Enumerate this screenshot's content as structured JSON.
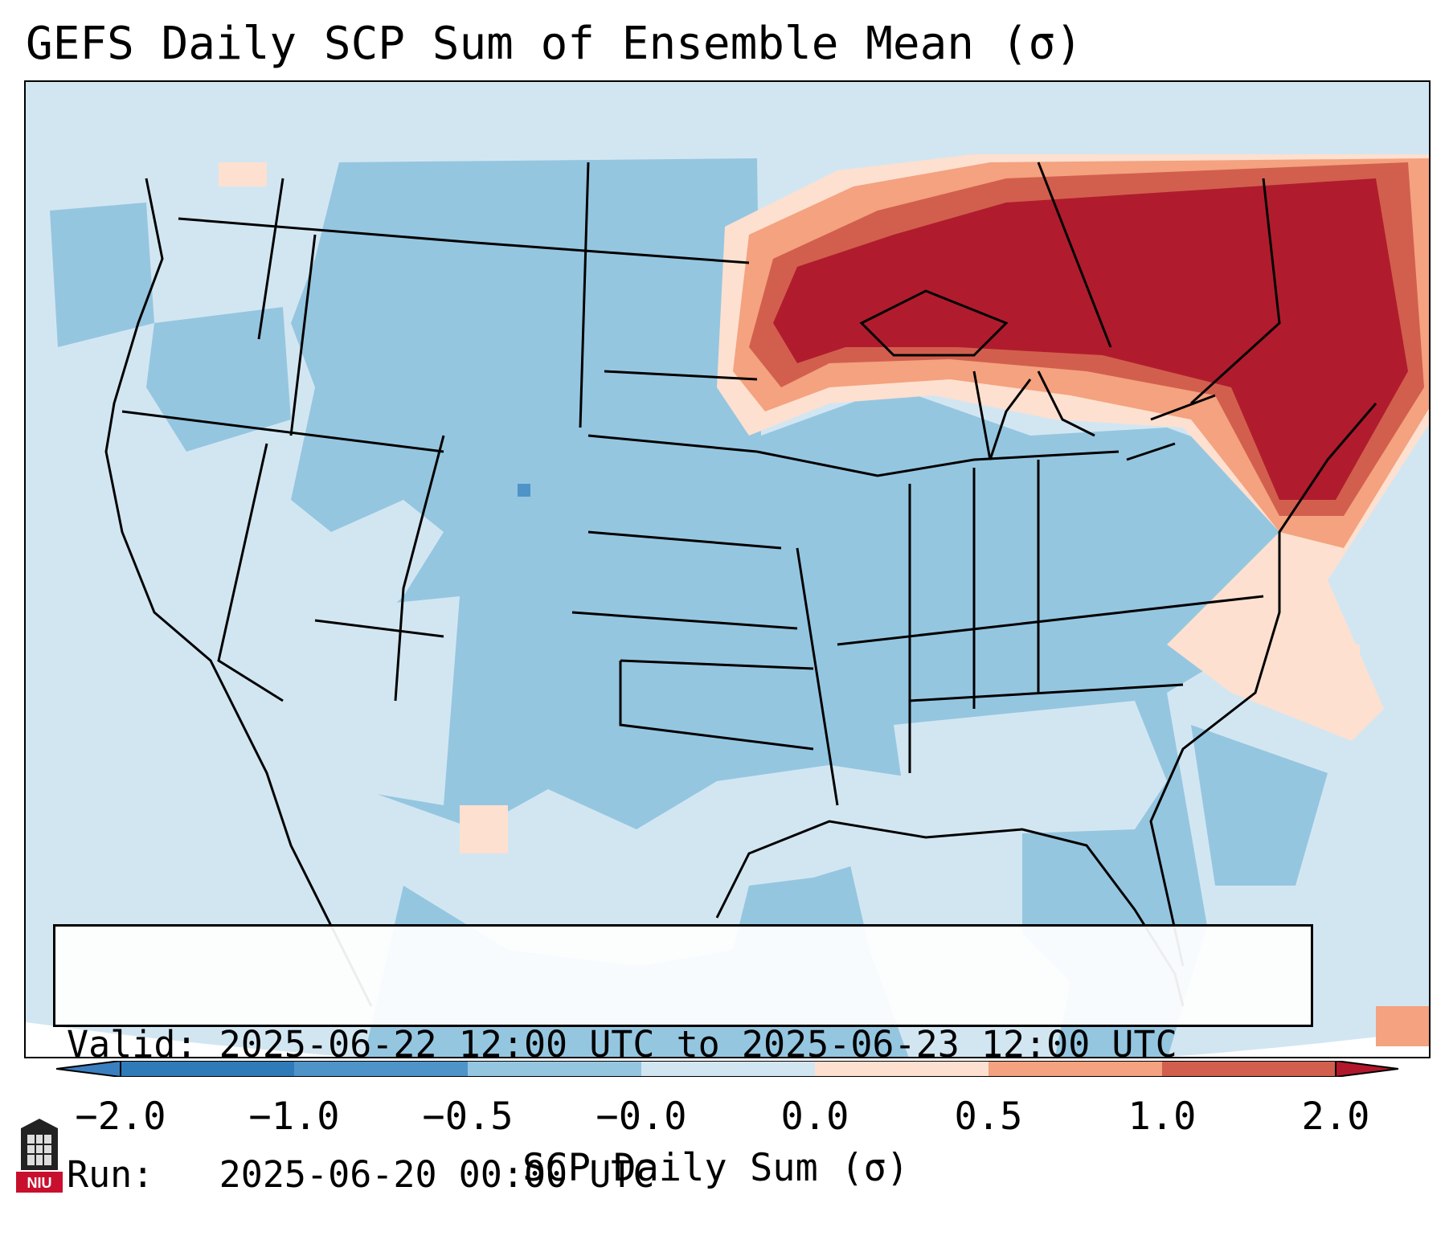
{
  "title": "GEFS Daily SCP Sum of Ensemble Mean (σ)",
  "info": {
    "valid_line": "Valid: 2025-06-22 12:00 UTC to 2025-06-23 12:00 UTC",
    "run_line": "Run:   2025-06-20 00:00 UTC"
  },
  "colorbar": {
    "label": "SCP Daily Sum (σ)",
    "ticks": [
      "−2.0",
      "−1.0",
      "−0.5",
      "−0.0",
      "0.0",
      "0.5",
      "1.0",
      "2.0"
    ],
    "colors": [
      "#2f7ab8",
      "#4f94c8",
      "#95c6e0",
      "#d2e6f2",
      "#fde0d0",
      "#f4a27f",
      "#d25f4e",
      "#b01c2d"
    ],
    "extend_low_color": "#3a7fc0",
    "extend_high_color": "#b2182b"
  },
  "map": {
    "region": "Continental United States",
    "dominant_field": "below-normal (light/medium blue) across most of CONUS",
    "hotspot": "well above normal (dark red) over Great Lakes / southern Canada and New England"
  },
  "logo": {
    "text": "NIU",
    "color": "#c8102e"
  }
}
